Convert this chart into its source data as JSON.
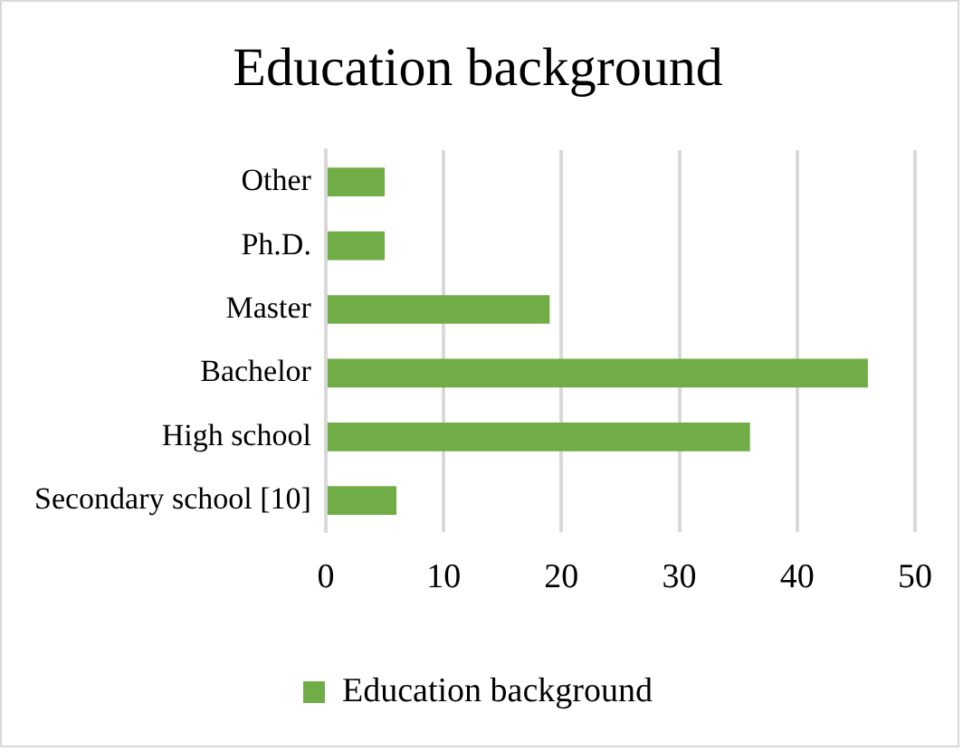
{
  "chart_data": {
    "type": "bar",
    "orientation": "horizontal",
    "title": "Education background",
    "categories": [
      "Other",
      "Ph.D.",
      "Master",
      "Bachelor",
      "High school",
      "Secondary school [10]"
    ],
    "series": [
      {
        "name": "Education background",
        "color": "#70ad47",
        "values": [
          5,
          5,
          19,
          46,
          36,
          6
        ]
      }
    ],
    "xlim": [
      0,
      50
    ],
    "xticks": [
      0,
      10,
      20,
      30,
      40,
      50
    ],
    "grid": "x",
    "legend": "bottom"
  }
}
